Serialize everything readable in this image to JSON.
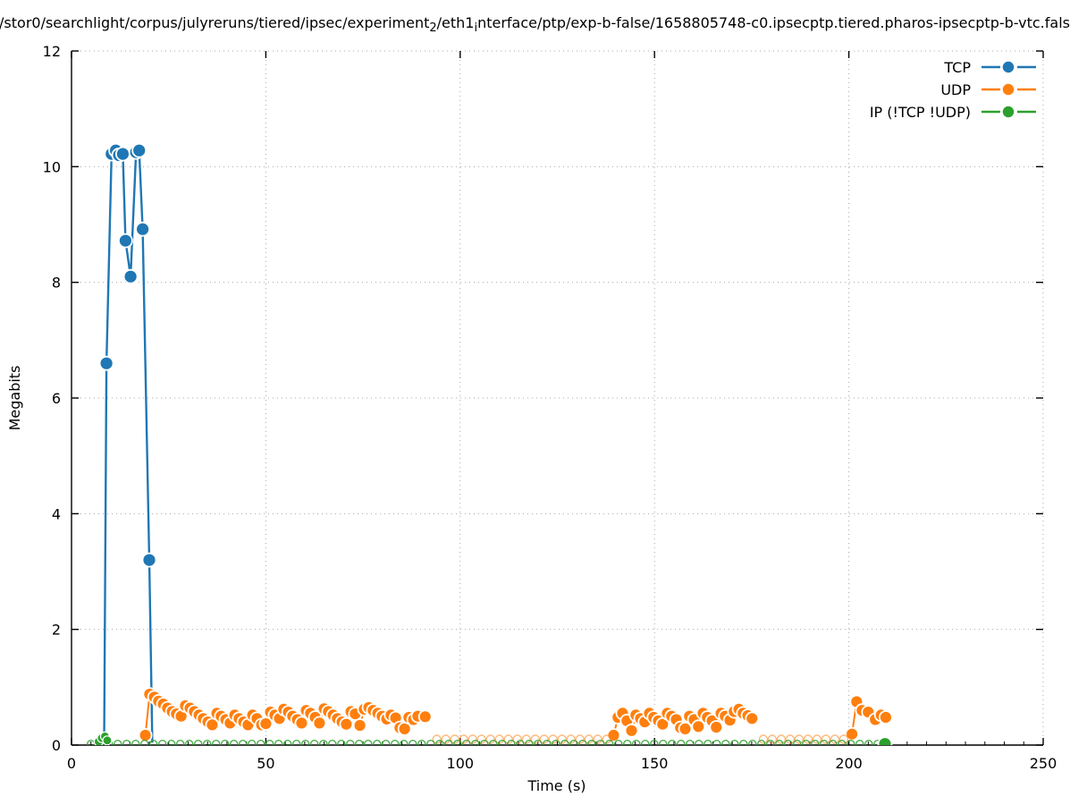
{
  "title": {
    "part1": "/stor0/searchlight/corpus/julyreruns/tiered/ipsec/experiment",
    "sub1": "2",
    "part2": "/eth1",
    "sub2": "i",
    "part3": "nterface/ptp/exp-b-false/1658805748-c0.ipsecptp.tiered.pharos-ipsecptp-b-vtc.fals"
  },
  "axes": {
    "x_label": "Time (s)",
    "y_label": "Megabits"
  },
  "colors": {
    "tcp": "#1f77b4",
    "udp": "#ff7f0e",
    "ip": "#2ca02c",
    "grid": "#a8a8a8",
    "axis": "#000000"
  },
  "chart_data": {
    "type": "line",
    "title": "/stor0/searchlight/corpus/julyreruns/tiered/ipsec/experiment_2/eth1_interface/ptp/exp-b-false/1658805748-c0.ipsecptp.tiered.pharos-ipsecptp-b-vtc.fals",
    "xlabel": "Time (s)",
    "ylabel": "Megabits",
    "xlim": [
      0,
      250
    ],
    "ylim": [
      0,
      12
    ],
    "xticks": [
      0,
      50,
      100,
      150,
      200,
      250
    ],
    "x_minor_step": 5,
    "yticks": [
      0,
      2,
      4,
      6,
      8,
      10,
      12
    ],
    "grid": true,
    "legend_position": "top-right",
    "series": [
      {
        "name": "TCP",
        "color": "#1f77b4",
        "marker": "filled-circle",
        "points": [
          [
            8.4,
            0.04
          ],
          [
            9.0,
            6.6
          ],
          [
            10.3,
            10.22
          ],
          [
            11.4,
            10.28
          ],
          [
            12.2,
            10.2
          ],
          [
            13.2,
            10.22
          ],
          [
            13.9,
            8.72
          ],
          [
            15.2,
            8.1
          ],
          [
            16.6,
            10.25
          ],
          [
            17.4,
            10.28
          ],
          [
            18.3,
            8.92
          ],
          [
            20.0,
            3.2
          ],
          [
            20.8,
            0.04
          ]
        ]
      },
      {
        "name": "UDP",
        "color": "#ff7f0e",
        "marker": "filled-circle",
        "clusters": [
          [
            [
              19.0,
              0.17
            ],
            [
              20.1,
              0.88
            ],
            [
              21.3,
              0.83
            ],
            [
              22.4,
              0.76
            ],
            [
              23.6,
              0.71
            ],
            [
              24.7,
              0.64
            ],
            [
              25.9,
              0.58
            ],
            [
              27.0,
              0.54
            ],
            [
              28.2,
              0.5
            ],
            [
              29.3,
              0.68
            ],
            [
              30.5,
              0.64
            ],
            [
              31.6,
              0.58
            ],
            [
              32.8,
              0.52
            ],
            [
              33.9,
              0.46
            ],
            [
              35.1,
              0.4
            ],
            [
              36.2,
              0.35
            ],
            [
              37.4,
              0.55
            ],
            [
              38.5,
              0.5
            ],
            [
              39.7,
              0.44
            ],
            [
              40.8,
              0.38
            ],
            [
              42.0,
              0.52
            ],
            [
              43.1,
              0.46
            ],
            [
              44.3,
              0.4
            ],
            [
              45.4,
              0.35
            ],
            [
              46.6,
              0.52
            ],
            [
              47.7,
              0.46
            ],
            [
              48.9,
              0.35
            ],
            [
              50.0,
              0.37
            ],
            [
              51.2,
              0.57
            ],
            [
              52.3,
              0.52
            ],
            [
              53.5,
              0.46
            ],
            [
              54.6,
              0.62
            ],
            [
              55.8,
              0.57
            ],
            [
              56.9,
              0.5
            ],
            [
              58.1,
              0.44
            ],
            [
              59.2,
              0.38
            ],
            [
              60.4,
              0.6
            ],
            [
              61.5,
              0.55
            ],
            [
              62.7,
              0.48
            ],
            [
              63.8,
              0.38
            ],
            [
              65.0,
              0.63
            ],
            [
              66.1,
              0.58
            ],
            [
              67.3,
              0.52
            ],
            [
              68.4,
              0.46
            ],
            [
              69.6,
              0.4
            ],
            [
              70.7,
              0.36
            ],
            [
              71.9,
              0.58
            ],
            [
              73.0,
              0.54
            ],
            [
              74.2,
              0.34
            ],
            [
              75.3,
              0.62
            ],
            [
              76.5,
              0.65
            ],
            [
              77.6,
              0.6
            ],
            [
              78.8,
              0.55
            ],
            [
              79.9,
              0.5
            ],
            [
              81.1,
              0.45
            ],
            [
              82.2,
              0.52
            ],
            [
              83.4,
              0.47
            ],
            [
              84.5,
              0.3
            ],
            [
              85.7,
              0.28
            ],
            [
              86.8,
              0.48
            ],
            [
              88.0,
              0.44
            ],
            [
              89.1,
              0.5
            ],
            [
              91.0,
              0.49
            ]
          ],
          [
            [
              139.5,
              0.17
            ],
            [
              140.6,
              0.48
            ],
            [
              141.8,
              0.55
            ],
            [
              142.9,
              0.42
            ],
            [
              144.1,
              0.25
            ],
            [
              145.2,
              0.52
            ],
            [
              146.4,
              0.46
            ],
            [
              147.5,
              0.4
            ],
            [
              148.7,
              0.55
            ],
            [
              149.8,
              0.48
            ],
            [
              151.0,
              0.42
            ],
            [
              152.1,
              0.36
            ],
            [
              153.3,
              0.55
            ],
            [
              154.4,
              0.5
            ],
            [
              155.6,
              0.44
            ],
            [
              156.7,
              0.3
            ],
            [
              157.9,
              0.28
            ],
            [
              159.0,
              0.5
            ],
            [
              160.2,
              0.44
            ],
            [
              161.3,
              0.32
            ],
            [
              162.5,
              0.55
            ],
            [
              163.6,
              0.48
            ],
            [
              164.8,
              0.42
            ],
            [
              165.9,
              0.31
            ],
            [
              167.1,
              0.55
            ],
            [
              168.2,
              0.5
            ],
            [
              169.4,
              0.43
            ],
            [
              170.5,
              0.58
            ],
            [
              171.7,
              0.62
            ],
            [
              172.8,
              0.55
            ],
            [
              174.0,
              0.51
            ],
            [
              175.1,
              0.46
            ]
          ],
          [
            [
              200.8,
              0.19
            ],
            [
              202.0,
              0.75
            ],
            [
              203.4,
              0.6
            ],
            [
              205.0,
              0.57
            ],
            [
              206.8,
              0.44
            ],
            [
              208.3,
              0.52
            ],
            [
              209.5,
              0.48
            ]
          ]
        ],
        "faint_value": 0.1,
        "faint_points": [
          94,
          96.3,
          98.6,
          100.9,
          103.2,
          105.5,
          107.8,
          110.1,
          112.4,
          114.7,
          117,
          119.3,
          121.6,
          123.9,
          126.2,
          128.5,
          130.8,
          133.1,
          135.4,
          137.7,
          178,
          180.3,
          182.6,
          184.9,
          187.2,
          189.5,
          191.8,
          194.1,
          196.4,
          198.7
        ]
      },
      {
        "name": "IP (!TCP  !UDP)",
        "color": "#2ca02c",
        "marker": "open-circle",
        "baseline": {
          "t_start": 5,
          "t_end": 208,
          "step": 2.3,
          "value": 0.02
        },
        "bump_points": [
          [
            7.0,
            0.06
          ],
          [
            7.8,
            0.12
          ],
          [
            8.6,
            0.15
          ],
          [
            9.2,
            0.08
          ]
        ],
        "end_point": [
          209.3,
          0.02
        ]
      }
    ]
  },
  "legend": {
    "items": [
      {
        "label": "TCP",
        "color": "#1f77b4"
      },
      {
        "label": "UDP",
        "color": "#ff7f0e"
      },
      {
        "label": "IP (!TCP  !UDP)",
        "color": "#2ca02c"
      }
    ]
  }
}
